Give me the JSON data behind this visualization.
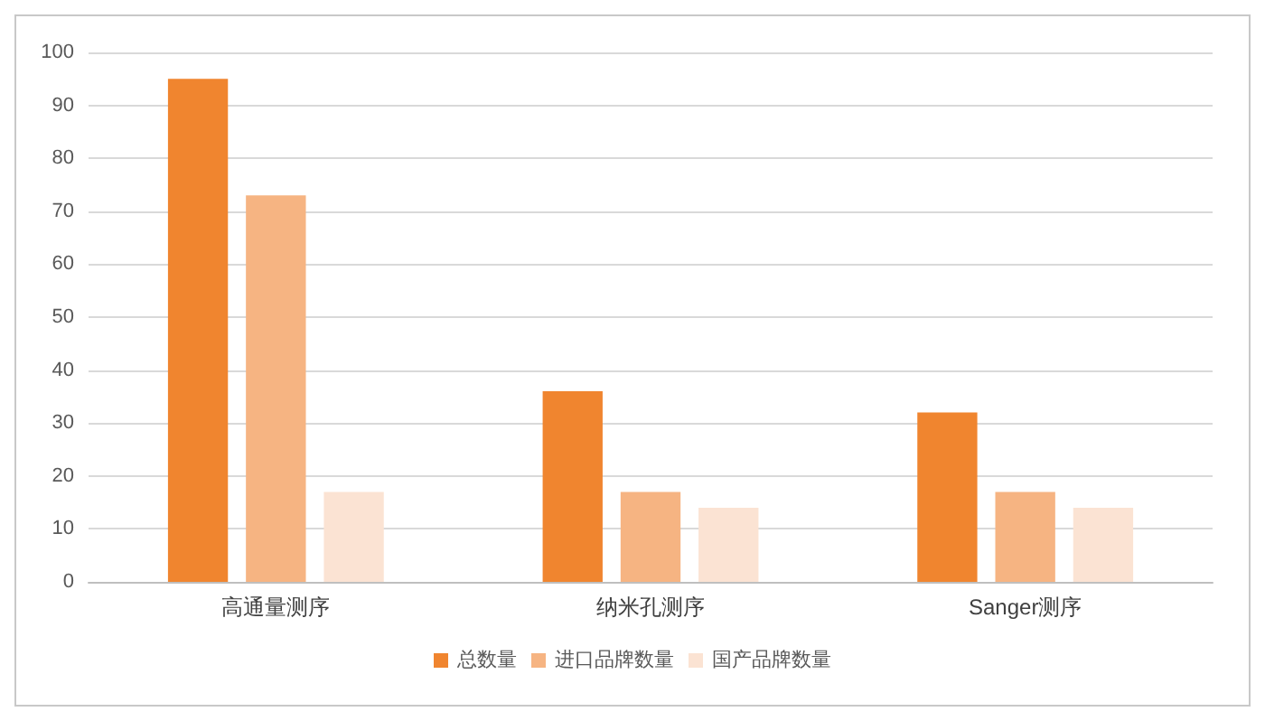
{
  "chart_data": {
    "type": "bar",
    "categories": [
      "高通量测序",
      "纳米孔测序",
      "Sanger测序"
    ],
    "series": [
      {
        "name": "总数量",
        "color": "#f0852f",
        "values": [
          95,
          36,
          32
        ]
      },
      {
        "name": "进口品牌数量",
        "color": "#f6b482",
        "values": [
          73,
          17,
          17
        ]
      },
      {
        "name": "国产品牌数量",
        "color": "#fbe3d3",
        "values": [
          17,
          14,
          14
        ]
      }
    ],
    "ylim": [
      0,
      100
    ],
    "yticks": [
      0,
      10,
      20,
      30,
      40,
      50,
      60,
      70,
      80,
      90,
      100
    ],
    "grid": "y",
    "legend": "bottom"
  }
}
